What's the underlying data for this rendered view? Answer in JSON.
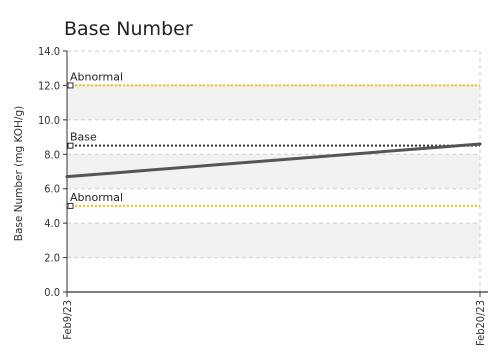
{
  "chart_data": {
    "type": "line",
    "title": "Base Number",
    "ylabel": "Base Number (mg KOH/g)",
    "xlabel": "",
    "x_ticks": [
      "Feb9/23",
      "Feb20/23"
    ],
    "ylim": [
      0,
      14
    ],
    "y_ticks": [
      "0.0",
      "2.0",
      "4.0",
      "6.0",
      "8.0",
      "10.0",
      "12.0",
      "14.0"
    ],
    "grid": true,
    "legend": "none",
    "series": [
      {
        "x": [
          "Feb9/23",
          "Feb20/23"
        ],
        "values": [
          6.7,
          8.6
        ],
        "color": "#555555"
      }
    ],
    "reference_lines": [
      {
        "label": "Abnormal",
        "value": 12.0,
        "color": "#f2c200",
        "style": "dotted",
        "marker": "#f2c200"
      },
      {
        "label": "Base",
        "value": 8.5,
        "color": "#333333",
        "style": "dotted",
        "marker": "#222222"
      },
      {
        "label": "Abnormal",
        "value": 5.0,
        "color": "#f2c200",
        "style": "dotted",
        "marker": "#f2c200"
      }
    ],
    "colors": {
      "band": "#f2f2f2",
      "grid": "#cfcfcf",
      "axis": "#333333"
    }
  }
}
